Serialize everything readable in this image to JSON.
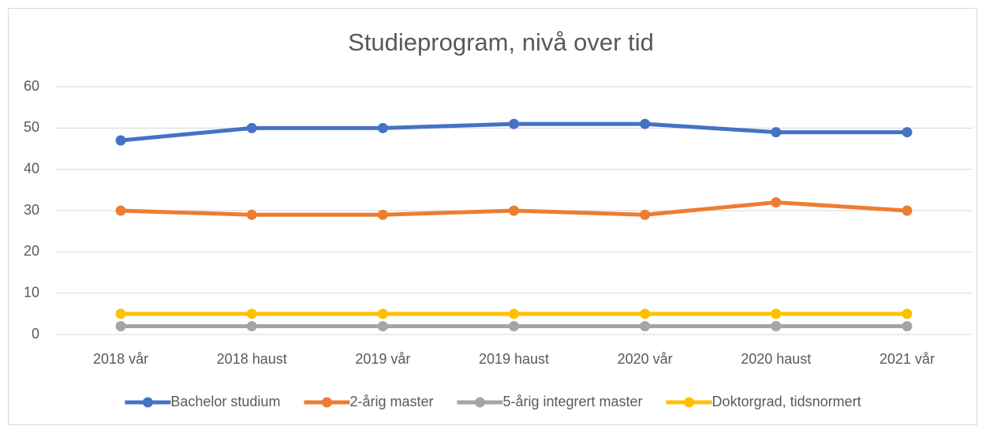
{
  "chart_data": {
    "type": "line",
    "title": "Studieprogram, nivå over tid",
    "categories": [
      "2018 vår",
      "2018 haust",
      "2019 vår",
      "2019 haust",
      "2020 vår",
      "2020 haust",
      "2021 vår"
    ],
    "series": [
      {
        "name": "Bachelor studium",
        "color": "#4472c4",
        "values": [
          47,
          50,
          50,
          51,
          51,
          49,
          49
        ]
      },
      {
        "name": "2-årig master",
        "color": "#ed7d31",
        "values": [
          30,
          29,
          29,
          30,
          29,
          32,
          30
        ]
      },
      {
        "name": "5-årig integrert master",
        "color": "#a5a5a5",
        "values": [
          2,
          2,
          2,
          2,
          2,
          2,
          2
        ]
      },
      {
        "name": "Doktorgrad, tidsnormert",
        "color": "#ffc000",
        "values": [
          5,
          5,
          5,
          5,
          5,
          5,
          5
        ]
      }
    ],
    "ylim": [
      0,
      60
    ],
    "yticks": [
      0,
      10,
      20,
      30,
      40,
      50,
      60
    ],
    "grid": true,
    "legend": "bottom"
  }
}
